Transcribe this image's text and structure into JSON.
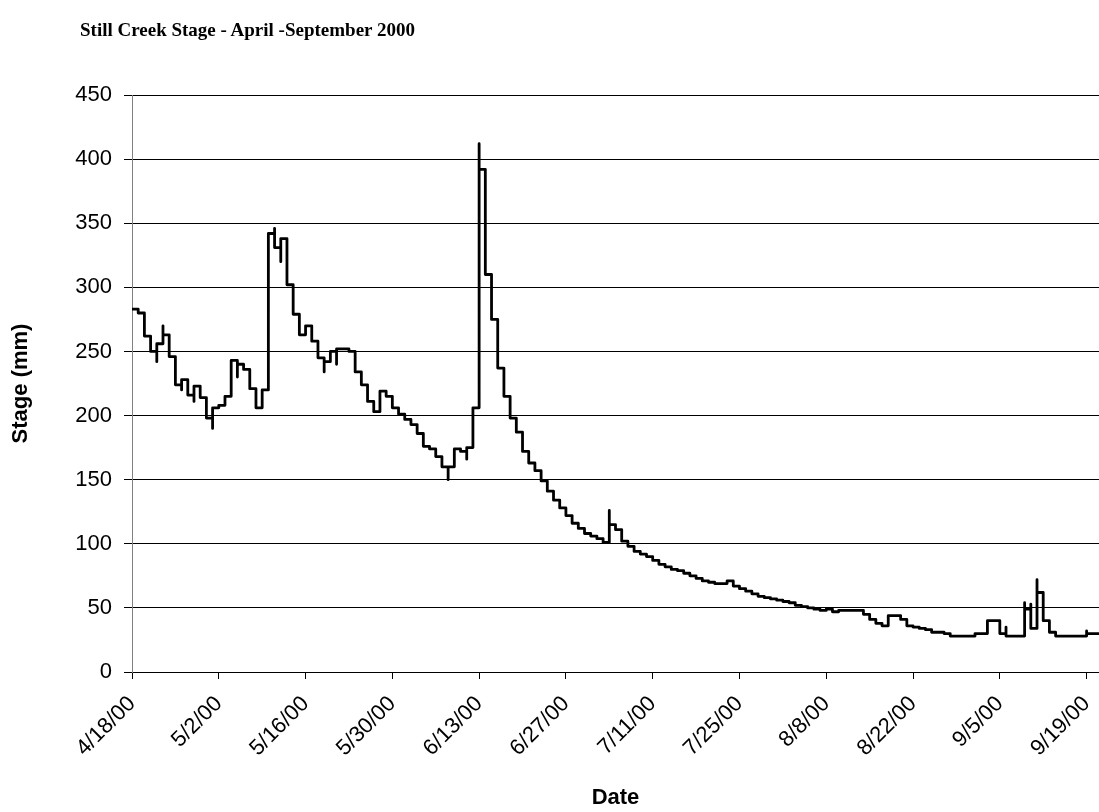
{
  "chart_data": {
    "type": "step",
    "title": "Still Creek Stage - April -September 2000",
    "xlabel": "Date",
    "ylabel": "Stage (mm)",
    "x": [
      "2000-04-18",
      "2000-04-19",
      "2000-04-20",
      "2000-04-21",
      "2000-04-22",
      "2000-04-22",
      "2000-04-23",
      "2000-04-23",
      "2000-04-24",
      "2000-04-25",
      "2000-04-26",
      "2000-04-26",
      "2000-04-27",
      "2000-04-28",
      "2000-04-28",
      "2000-04-29",
      "2000-04-30",
      "2000-05-01",
      "2000-05-01",
      "2000-05-02",
      "2000-05-03",
      "2000-05-04",
      "2000-05-05",
      "2000-05-05",
      "2000-05-06",
      "2000-05-07",
      "2000-05-08",
      "2000-05-09",
      "2000-05-10",
      "2000-05-11",
      "2000-05-11",
      "2000-05-12",
      "2000-05-12",
      "2000-05-13",
      "2000-05-14",
      "2000-05-15",
      "2000-05-16",
      "2000-05-17",
      "2000-05-18",
      "2000-05-19",
      "2000-05-19",
      "2000-05-20",
      "2000-05-21",
      "2000-05-21",
      "2000-05-23",
      "2000-05-24",
      "2000-05-25",
      "2000-05-26",
      "2000-05-27",
      "2000-05-28",
      "2000-05-29",
      "2000-05-30",
      "2000-05-31",
      "2000-06-01",
      "2000-06-02",
      "2000-06-03",
      "2000-06-04",
      "2000-06-05",
      "2000-06-06",
      "2000-06-07",
      "2000-06-08",
      "2000-06-08",
      "2000-06-09",
      "2000-06-10",
      "2000-06-11",
      "2000-06-11",
      "2000-06-12",
      "2000-06-13",
      "2000-06-13",
      "2000-06-14",
      "2000-06-15",
      "2000-06-16",
      "2000-06-17",
      "2000-06-18",
      "2000-06-19",
      "2000-06-20",
      "2000-06-21",
      "2000-06-22",
      "2000-06-23",
      "2000-06-24",
      "2000-06-25",
      "2000-06-26",
      "2000-06-27",
      "2000-06-28",
      "2000-06-29",
      "2000-06-30",
      "2000-07-01",
      "2000-07-02",
      "2000-07-03",
      "2000-07-04",
      "2000-07-04",
      "2000-07-05",
      "2000-07-06",
      "2000-07-07",
      "2000-07-08",
      "2000-07-09",
      "2000-07-10",
      "2000-07-11",
      "2000-07-12",
      "2000-07-13",
      "2000-07-14",
      "2000-07-15",
      "2000-07-16",
      "2000-07-17",
      "2000-07-18",
      "2000-07-19",
      "2000-07-20",
      "2000-07-21",
      "2000-07-23",
      "2000-07-24",
      "2000-07-25",
      "2000-07-26",
      "2000-07-27",
      "2000-07-28",
      "2000-07-29",
      "2000-07-30",
      "2000-07-31",
      "2000-08-01",
      "2000-08-02",
      "2000-08-03",
      "2000-08-04",
      "2000-08-05",
      "2000-08-06",
      "2000-08-07",
      "2000-08-08",
      "2000-08-09",
      "2000-08-10",
      "2000-08-14",
      "2000-08-15",
      "2000-08-16",
      "2000-08-17",
      "2000-08-18",
      "2000-08-20",
      "2000-08-21",
      "2000-08-22",
      "2000-08-23",
      "2000-08-24",
      "2000-08-25",
      "2000-08-27",
      "2000-08-28",
      "2000-09-01",
      "2000-09-03",
      "2000-09-05",
      "2000-09-06",
      "2000-09-06",
      "2000-09-09",
      "2000-09-09",
      "2000-09-10",
      "2000-09-10",
      "2000-09-11",
      "2000-09-11",
      "2000-09-12",
      "2000-09-13",
      "2000-09-14",
      "2000-09-19",
      "2000-09-19",
      "2000-09-21"
    ],
    "values": [
      283,
      280,
      262,
      250,
      242,
      256,
      270,
      263,
      246,
      224,
      220,
      228,
      216,
      211,
      223,
      214,
      198,
      190,
      206,
      208,
      215,
      243,
      230,
      240,
      236,
      221,
      206,
      220,
      342,
      346,
      331,
      320,
      338,
      302,
      279,
      263,
      270,
      258,
      245,
      234,
      242,
      250,
      240,
      252,
      250,
      234,
      224,
      211,
      203,
      219,
      215,
      206,
      201,
      197,
      193,
      186,
      176,
      174,
      168,
      160,
      150,
      160,
      174,
      172,
      166,
      175,
      206,
      412,
      392,
      310,
      275,
      237,
      215,
      198,
      187,
      172,
      163,
      157,
      149,
      141,
      134,
      128,
      122,
      116,
      112,
      108,
      106,
      104,
      101,
      126,
      115,
      111,
      102,
      98,
      94,
      92,
      90,
      87,
      84,
      82,
      80,
      79,
      77,
      75,
      73,
      71,
      70,
      69,
      71,
      67,
      65,
      63,
      61,
      59,
      58,
      57,
      56,
      55,
      54,
      52,
      51,
      50,
      49,
      48,
      49,
      47,
      48,
      45,
      41,
      38,
      36,
      44,
      41,
      36,
      35,
      34,
      33,
      31,
      30,
      28,
      30,
      40,
      30,
      35,
      28,
      54,
      49,
      53,
      34,
      72,
      62,
      40,
      31,
      28,
      32,
      30,
      30
    ],
    "color": "#000000",
    "marker": "none",
    "xlim": [
      "2000-04-18",
      "2000-09-21"
    ],
    "xticks": [
      {
        "value": "2000-04-18",
        "label": "4/18/00"
      },
      {
        "value": "2000-05-02",
        "label": "5/2/00"
      },
      {
        "value": "2000-05-16",
        "label": "5/16/00"
      },
      {
        "value": "2000-05-30",
        "label": "5/30/00"
      },
      {
        "value": "2000-06-13",
        "label": "6/13/00"
      },
      {
        "value": "2000-06-27",
        "label": "6/27/00"
      },
      {
        "value": "2000-07-11",
        "label": "7/11/00"
      },
      {
        "value": "2000-07-25",
        "label": "7/25/00"
      },
      {
        "value": "2000-08-08",
        "label": "8/8/00"
      },
      {
        "value": "2000-08-22",
        "label": "8/22/00"
      },
      {
        "value": "2000-09-05",
        "label": "9/5/00"
      },
      {
        "value": "2000-09-19",
        "label": "9/19/00"
      }
    ],
    "ylim": [
      0,
      450
    ],
    "yticks": [
      0,
      50,
      100,
      150,
      200,
      250,
      300,
      350,
      400,
      450
    ],
    "grid": "y"
  }
}
